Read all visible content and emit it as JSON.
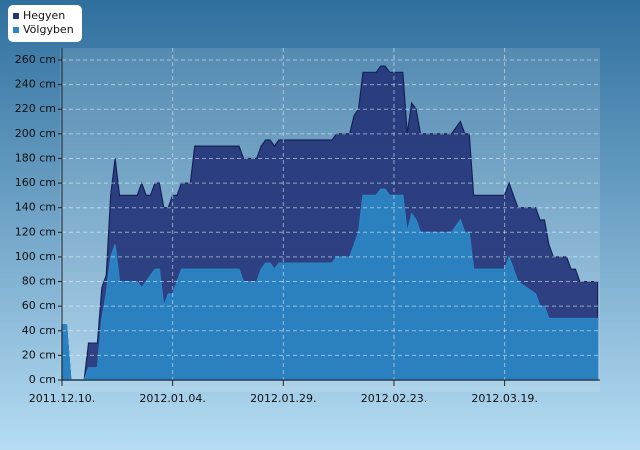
{
  "chart_data": {
    "type": "area",
    "x": [
      "2011-12-10",
      "2011-12-11",
      "2011-12-12",
      "2011-12-15",
      "2011-12-16",
      "2011-12-18",
      "2011-12-19",
      "2011-12-20",
      "2011-12-21",
      "2011-12-22",
      "2011-12-23",
      "2011-12-27",
      "2011-12-28",
      "2011-12-29",
      "2011-12-30",
      "2011-12-31",
      "2012-01-01",
      "2012-01-02",
      "2012-01-03",
      "2012-01-04",
      "2012-01-05",
      "2012-01-06",
      "2012-01-08",
      "2012-01-09",
      "2012-01-19",
      "2012-01-20",
      "2012-01-23",
      "2012-01-24",
      "2012-01-25",
      "2012-01-26",
      "2012-01-27",
      "2012-01-28",
      "2012-02-09",
      "2012-02-10",
      "2012-02-13",
      "2012-02-14",
      "2012-02-15",
      "2012-02-16",
      "2012-02-19",
      "2012-02-20",
      "2012-02-21",
      "2012-02-22",
      "2012-02-25",
      "2012-02-26",
      "2012-02-27",
      "2012-02-28",
      "2012-02-29",
      "2012-03-07",
      "2012-03-09",
      "2012-03-10",
      "2012-03-11",
      "2012-03-12",
      "2012-03-19",
      "2012-03-20",
      "2012-03-22",
      "2012-03-26",
      "2012-03-27",
      "2012-03-28",
      "2012-03-29",
      "2012-03-30",
      "2012-04-02",
      "2012-04-03",
      "2012-04-04",
      "2012-04-05",
      "2012-04-09"
    ],
    "series": [
      {
        "name": "Hegyen",
        "color": "#25357a",
        "values": [
          45,
          45,
          0,
          0,
          30,
          30,
          75,
          85,
          150,
          180,
          150,
          150,
          160,
          150,
          150,
          160,
          160,
          140,
          140,
          150,
          150,
          160,
          160,
          190,
          190,
          180,
          180,
          190,
          195,
          195,
          190,
          195,
          195,
          200,
          200,
          215,
          220,
          250,
          250,
          255,
          255,
          250,
          250,
          200,
          225,
          220,
          200,
          200,
          210,
          200,
          200,
          150,
          150,
          160,
          140,
          140,
          130,
          130,
          110,
          100,
          100,
          90,
          90,
          80,
          80
        ]
      },
      {
        "name": "Völgyben",
        "color": "#2b85c6",
        "values": [
          45,
          45,
          0,
          0,
          10,
          10,
          50,
          70,
          100,
          110,
          80,
          80,
          75,
          80,
          85,
          90,
          90,
          60,
          70,
          70,
          80,
          90,
          90,
          90,
          90,
          80,
          80,
          90,
          95,
          95,
          90,
          95,
          95,
          100,
          100,
          110,
          120,
          150,
          150,
          155,
          155,
          150,
          150,
          120,
          135,
          130,
          120,
          120,
          130,
          120,
          120,
          90,
          90,
          100,
          80,
          70,
          60,
          60,
          50,
          50,
          50,
          50,
          50,
          50,
          50
        ]
      }
    ],
    "xlim": [
      "2011-12-10",
      "2012-04-10"
    ],
    "xticks": [
      {
        "value": "2011-12-10",
        "label": "2011.12.10."
      },
      {
        "value": "2012-01-04",
        "label": "2012.01.04."
      },
      {
        "value": "2012-01-29",
        "label": "2012.01.29."
      },
      {
        "value": "2012-02-23",
        "label": "2012.02.23."
      },
      {
        "value": "2012-03-19",
        "label": "2012.03.19."
      }
    ],
    "ylim": [
      0,
      260
    ],
    "yticks": [
      {
        "value": 0,
        "label": "0 cm"
      },
      {
        "value": 20,
        "label": "20 cm"
      },
      {
        "value": 40,
        "label": "40 cm"
      },
      {
        "value": 60,
        "label": "60 cm"
      },
      {
        "value": 80,
        "label": "80 cm"
      },
      {
        "value": 100,
        "label": "100 cm"
      },
      {
        "value": 120,
        "label": "120 cm"
      },
      {
        "value": 140,
        "label": "140 cm"
      },
      {
        "value": 160,
        "label": "160 cm"
      },
      {
        "value": 180,
        "label": "180 cm"
      },
      {
        "value": 200,
        "label": "200 cm"
      },
      {
        "value": 220,
        "label": "220 cm"
      },
      {
        "value": 240,
        "label": "240 cm"
      },
      {
        "value": 260,
        "label": "260 cm"
      }
    ],
    "grid": true,
    "legend": "top-left"
  }
}
